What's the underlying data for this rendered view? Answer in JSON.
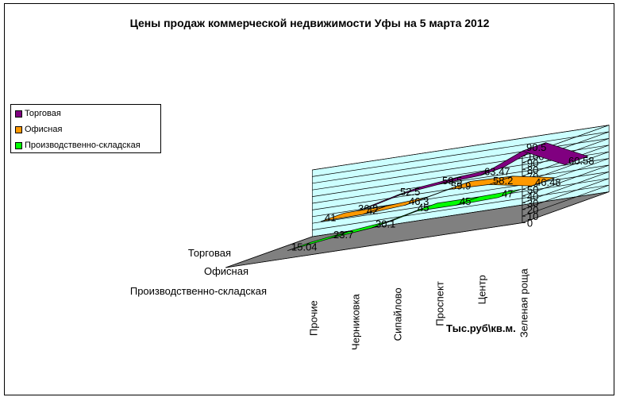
{
  "chart_data": {
    "type": "line",
    "subtype": "3d-line",
    "title": "Цены продаж коммерческой недвижимости Уфы на 5 марта 2012",
    "xlabel": "Тыс.руб\\кв.м.",
    "ylabel": "",
    "categories": [
      "Прочие",
      "Черниковка",
      "Сипайлово",
      "Проспект",
      "Центр",
      "Зеленая роща"
    ],
    "series": [
      {
        "name": "Торговая",
        "color": "#800080",
        "values": [
          36.8,
          52.5,
          59.5,
          63.47,
          90.5,
          60.58
        ]
      },
      {
        "name": "Офисная",
        "color": "#FF9900",
        "values": [
          41,
          42,
          46.3,
          59.9,
          58.2,
          46.48
        ]
      },
      {
        "name": "Производственно-складская",
        "color": "#00FF00",
        "values": [
          15.04,
          23.7,
          30.1,
          45,
          45,
          47
        ]
      }
    ],
    "series_axis_labels": [
      "Торговая",
      "Офисная",
      "Производственно-складская"
    ],
    "ylim": [
      0,
      100
    ],
    "y_ticks": [
      0,
      10,
      20,
      30,
      40,
      50,
      60,
      70,
      80,
      90,
      100
    ],
    "grid": true,
    "legend_position": "left",
    "colors": {
      "wall": "#CCFFFF",
      "floor": "#808080",
      "gridline": "#000000"
    }
  }
}
